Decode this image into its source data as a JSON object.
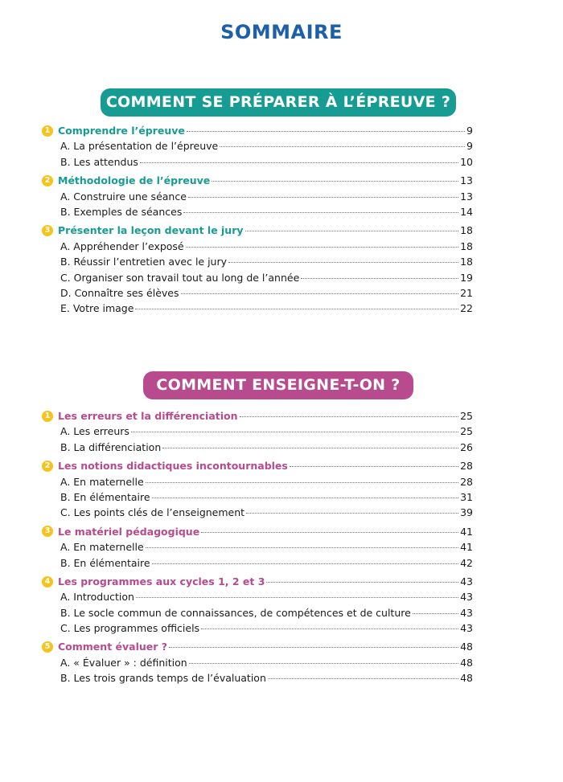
{
  "title": "SOMMAIRE",
  "parts": [
    {
      "banner": "COMMENT SE PRÉPARER À L’ÉPREUVE ?",
      "color": "#179c93",
      "sections": [
        {
          "num": "1",
          "label": "Comprendre l’épreuve",
          "page": "9",
          "items": [
            {
              "label": "A. La présentation de l’épreuve",
              "page": "9"
            },
            {
              "label": "B. Les attendus",
              "page": "10"
            }
          ]
        },
        {
          "num": "2",
          "label": "Méthodologie de l’épreuve",
          "page": "13",
          "items": [
            {
              "label": "A. Construire une séance",
              "page": "13"
            },
            {
              "label": "B. Exemples de séances",
              "page": "14"
            }
          ]
        },
        {
          "num": "3",
          "label": "Présenter la leçon devant le jury",
          "page": "18",
          "items": [
            {
              "label": "A. Appréhender l’exposé",
              "page": "18"
            },
            {
              "label": "B. Réussir l’entretien avec le jury",
              "page": "18"
            },
            {
              "label": "C. Organiser son travail tout au long de l’année",
              "page": "19"
            },
            {
              "label": "D. Connaître ses élèves",
              "page": "21"
            },
            {
              "label": "E. Votre image",
              "page": "22"
            }
          ]
        }
      ]
    },
    {
      "banner": "COMMENT ENSEIGNE-T-ON ?",
      "color": "#b84a8e",
      "sections": [
        {
          "num": "1",
          "label": "Les erreurs et la différenciation",
          "page": "25",
          "items": [
            {
              "label": "A. Les erreurs",
              "page": "25"
            },
            {
              "label": "B. La différenciation",
              "page": "26"
            }
          ]
        },
        {
          "num": "2",
          "label": "Les notions didactiques incontournables",
          "page": "28",
          "items": [
            {
              "label": "A. En maternelle",
              "page": "28"
            },
            {
              "label": "B. En élémentaire",
              "page": "31"
            },
            {
              "label": "C. Les points clés de l’enseignement",
              "page": "39"
            }
          ]
        },
        {
          "num": "3",
          "label": "Le matériel pédagogique",
          "page": "41",
          "items": [
            {
              "label": "A. En maternelle",
              "page": "41"
            },
            {
              "label": "B. En élémentaire",
              "page": "42"
            }
          ]
        },
        {
          "num": "4",
          "label": "Les programmes aux cycles 1, 2 et 3",
          "page": "43",
          "items": [
            {
              "label": "A. Introduction",
              "page": "43"
            },
            {
              "label": "B. Le socle commun de connaissances, de compétences et de culture",
              "page": "43"
            },
            {
              "label": "C. Les programmes officiels",
              "page": "43"
            }
          ]
        },
        {
          "num": "5",
          "label": "Comment évaluer ?",
          "page": "48",
          "items": [
            {
              "label": "A. « Évaluer » : définition",
              "page": "48"
            },
            {
              "label": "B. Les trois grands temps de l’évaluation",
              "page": "48"
            }
          ]
        }
      ]
    }
  ]
}
